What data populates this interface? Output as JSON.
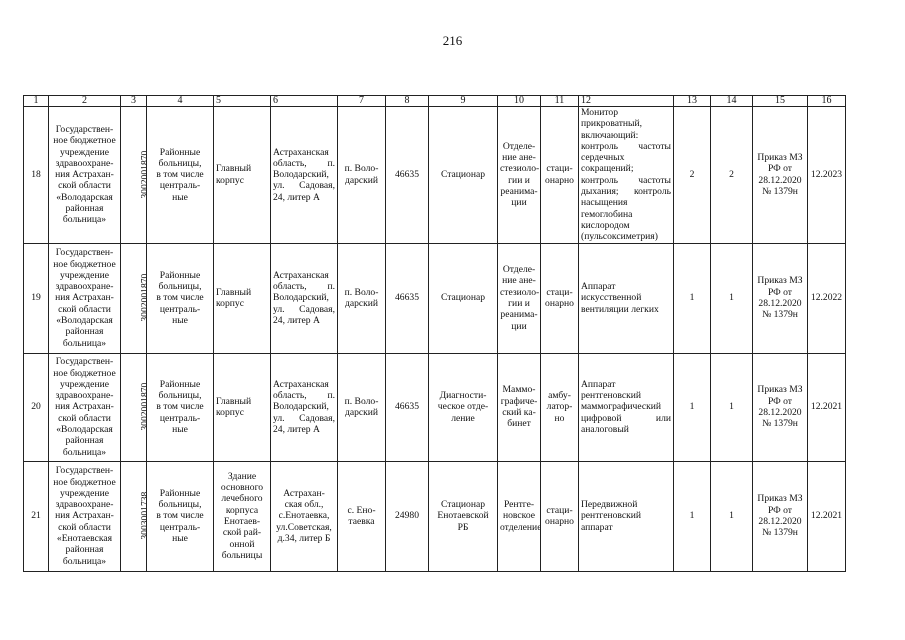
{
  "page_number": "216",
  "table": {
    "headers": [
      "1",
      "2",
      "3",
      "4",
      "5",
      "6",
      "7",
      "8",
      "9",
      "10",
      "11",
      "12",
      "13",
      "14",
      "15",
      "16"
    ],
    "rows": [
      [
        "18",
        "Государствен-\nное бюджетное\nучреждение\nздравоохране-\nния Астрахан-\nской области\n«Володарская\nрайонная\nбольница»",
        "3002001870",
        "Районные\nбольницы,\nв том числе\nцентраль-\nные",
        "Главный\nкорпус",
        "Астраханская область, п. Володарский, ул. Садовая, 24, литер А",
        "п. Воло-\nдарский",
        "46635",
        "Стационар",
        "Отделе-\nние ане-\nстезиоло-\nгии и\nреанима-\nции",
        "стаци-\nонарно",
        "Монитор прикроватный, включающий: контроль частоты сердечных сокращений; контроль частоты дыхания; контроль насыщения гемоглобина кислородом (пульсоксиметрия)",
        "2",
        "2",
        "Приказ МЗ\nРФ от\n28.12.2020\n№ 1379н",
        "12.2023"
      ],
      [
        "19",
        "Государствен-\nное бюджетное\nучреждение\nздравоохране-\nния Астрахан-\nской области\n«Володарская\nрайонная\nбольница»",
        "3002001870",
        "Районные\nбольницы,\nв том числе\nцентраль-\nные",
        "Главный\nкорпус",
        "Астраханская область, п. Володарский, ул. Садовая, 24, литер А",
        "п. Воло-\nдарский",
        "46635",
        "Стационар",
        "Отделе-\nние ане-\nстезиоло-\nгии и\nреанима-\nции",
        "стаци-\nонарно",
        "Аппарат искусственной вентиляции легких",
        "1",
        "1",
        "Приказ МЗ\nРФ от\n28.12.2020\n№ 1379н",
        "12.2022"
      ],
      [
        "20",
        "Государствен-\nное бюджетное\nучреждение\nздравоохране-\nния Астрахан-\nской области\n«Володарская\nрайонная\nбольница»",
        "3002001870",
        "Районные\nбольницы,\nв том числе\nцентраль-\nные",
        "Главный\nкорпус",
        "Астраханская область, п. Володарский, ул. Садовая, 24, литер А",
        "п. Воло-\nдарский",
        "46635",
        "Диагности-\nческое отде-\nление",
        "Маммо-\nграфиче-\nский ка-\nбинет",
        "амбу-\nлатор-\nно",
        "Аппарат рентгеновский маммографический цифровой или аналоговый",
        "1",
        "1",
        "Приказ МЗ\nРФ от\n28.12.2020\n№ 1379н",
        "12.2021"
      ],
      [
        "21",
        "Государствен-\nное бюджетное\nучреждение\nздравоохране-\nния Астрахан-\nской области\n«Енотаевская\nрайонная\nбольница»",
        "3003001738",
        "Районные\nбольницы,\nв том числе\nцентраль-\nные",
        "Здание\nосновного\nлечебного\nкорпуса\nЕнотаев-\nской рай-\nонной\nбольницы",
        "Астрахан-\nская обл.,\nс.Енотаевка,\nул.Советская,\nд.34, литер Б",
        "с. Ено-\nтаевка",
        "24980",
        "Стационар\nЕнотаевской\nРБ",
        "Рентге-\nновское\nотделение",
        "стаци-\nонарно",
        "Передвижной рентгеновский аппарат",
        "1",
        "1",
        "Приказ МЗ\nРФ от\n28.12.2020\n№ 1379н",
        "12.2021"
      ]
    ]
  }
}
